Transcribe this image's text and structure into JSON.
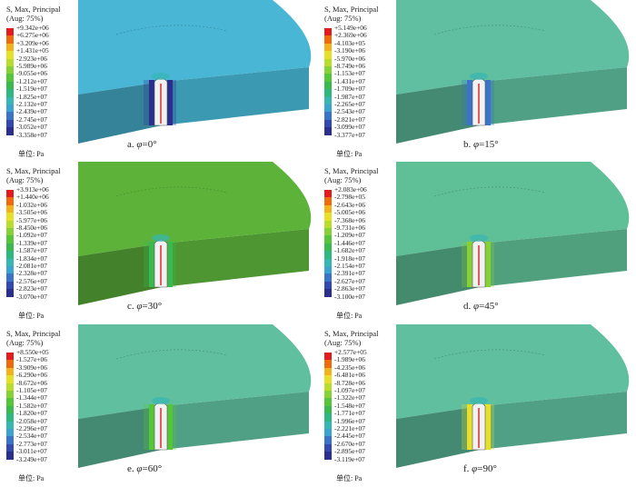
{
  "legend_title_line1": "S, Max, Principal",
  "legend_title_line2": "(Aug: 75%)",
  "unit_label": "单位: Pa",
  "caption_phi_symbol": "φ",
  "contour_colors": [
    "#e41a1c",
    "#f06a0c",
    "#f3b21b",
    "#e6e02a",
    "#b8dd2c",
    "#86d236",
    "#55c53a",
    "#39b94e",
    "#2fb780",
    "#36b7b2",
    "#3aa3cf",
    "#3a74c9",
    "#3449b0",
    "#2a2e8f"
  ],
  "panels": [
    {
      "caption_prefix": "a.",
      "caption_angle": "=0°",
      "values": [
        "+9.342e+06",
        "+6.275e+06",
        "+3.209e+06",
        "+1.431e+05",
        "-2.923e+06",
        "-5.989e+06",
        "-9.055e+06",
        "-1.212e+07",
        "-1.519e+07",
        "-1.825e+07",
        "-2.132e+07",
        "-2.439e+07",
        "-2.745e+07",
        "-3.052e+07",
        "-3.358e+07"
      ],
      "surface_color": "#48b6d4",
      "band_color": "#2a2e8f"
    },
    {
      "caption_prefix": "b.",
      "caption_angle": "=15°",
      "values": [
        "+5.149e+06",
        "+2.369e+06",
        "-4.103e+05",
        "-3.190e+06",
        "-5.970e+06",
        "-8.749e+06",
        "-1.153e+07",
        "-1.431e+07",
        "-1.709e+07",
        "-1.987e+07",
        "-2.265e+07",
        "-2.543e+07",
        "-2.821e+07",
        "-3.099e+07",
        "-3.377e+07"
      ],
      "surface_color": "#5fbfa0",
      "band_color": "#3a74c9"
    },
    {
      "caption_prefix": "c.",
      "caption_angle": "=30°",
      "values": [
        "+3.913e+06",
        "+1.440e+06",
        "-1.032e+06",
        "-3.505e+06",
        "-5.977e+06",
        "-8.450e+06",
        "-1.092e+07",
        "-1.339e+07",
        "-1.587e+07",
        "-1.834e+07",
        "-2.081e+07",
        "-2.328e+07",
        "-2.576e+07",
        "-2.823e+07",
        "-3.070e+07"
      ],
      "surface_color": "#5db33a",
      "band_color": "#39b94e"
    },
    {
      "caption_prefix": "d.",
      "caption_angle": "=45°",
      "values": [
        "+2.083e+06",
        "-2.798e+05",
        "-2.643e+06",
        "-5.005e+06",
        "-7.368e+06",
        "-9.731e+06",
        "-1.209e+07",
        "-1.446e+07",
        "-1.682e+07",
        "-1.918e+07",
        "-2.154e+07",
        "-2.391e+07",
        "-2.627e+07",
        "-2.863e+07",
        "-3.100e+07"
      ],
      "surface_color": "#5fbf96",
      "band_color": "#86d236"
    },
    {
      "caption_prefix": "e.",
      "caption_angle": "=60°",
      "values": [
        "+8.550e+05",
        "-1.527e+06",
        "-3.909e+06",
        "-6.290e+06",
        "-8.672e+06",
        "-1.105e+07",
        "-1.344e+07",
        "-1.582e+07",
        "-1.820e+07",
        "-2.058e+07",
        "-2.296e+07",
        "-2.534e+07",
        "-2.773e+07",
        "-3.011e+07",
        "-3.249e+07"
      ],
      "surface_color": "#5fbf9e",
      "band_color": "#55c53a"
    },
    {
      "caption_prefix": "f.",
      "caption_angle": "=90°",
      "values": [
        "+2.577e+05",
        "-1.989e+06",
        "-4.235e+06",
        "-6.481e+06",
        "-8.728e+06",
        "-1.097e+07",
        "-1.322e+07",
        "-1.548e+07",
        "-1.771e+07",
        "-1.996e+07",
        "-2.221e+07",
        "-2.445e+07",
        "-2.670e+07",
        "-2.895e+07",
        "-3.119e+07"
      ],
      "surface_color": "#5fbf9e",
      "band_color": "#e6e02a"
    }
  ]
}
